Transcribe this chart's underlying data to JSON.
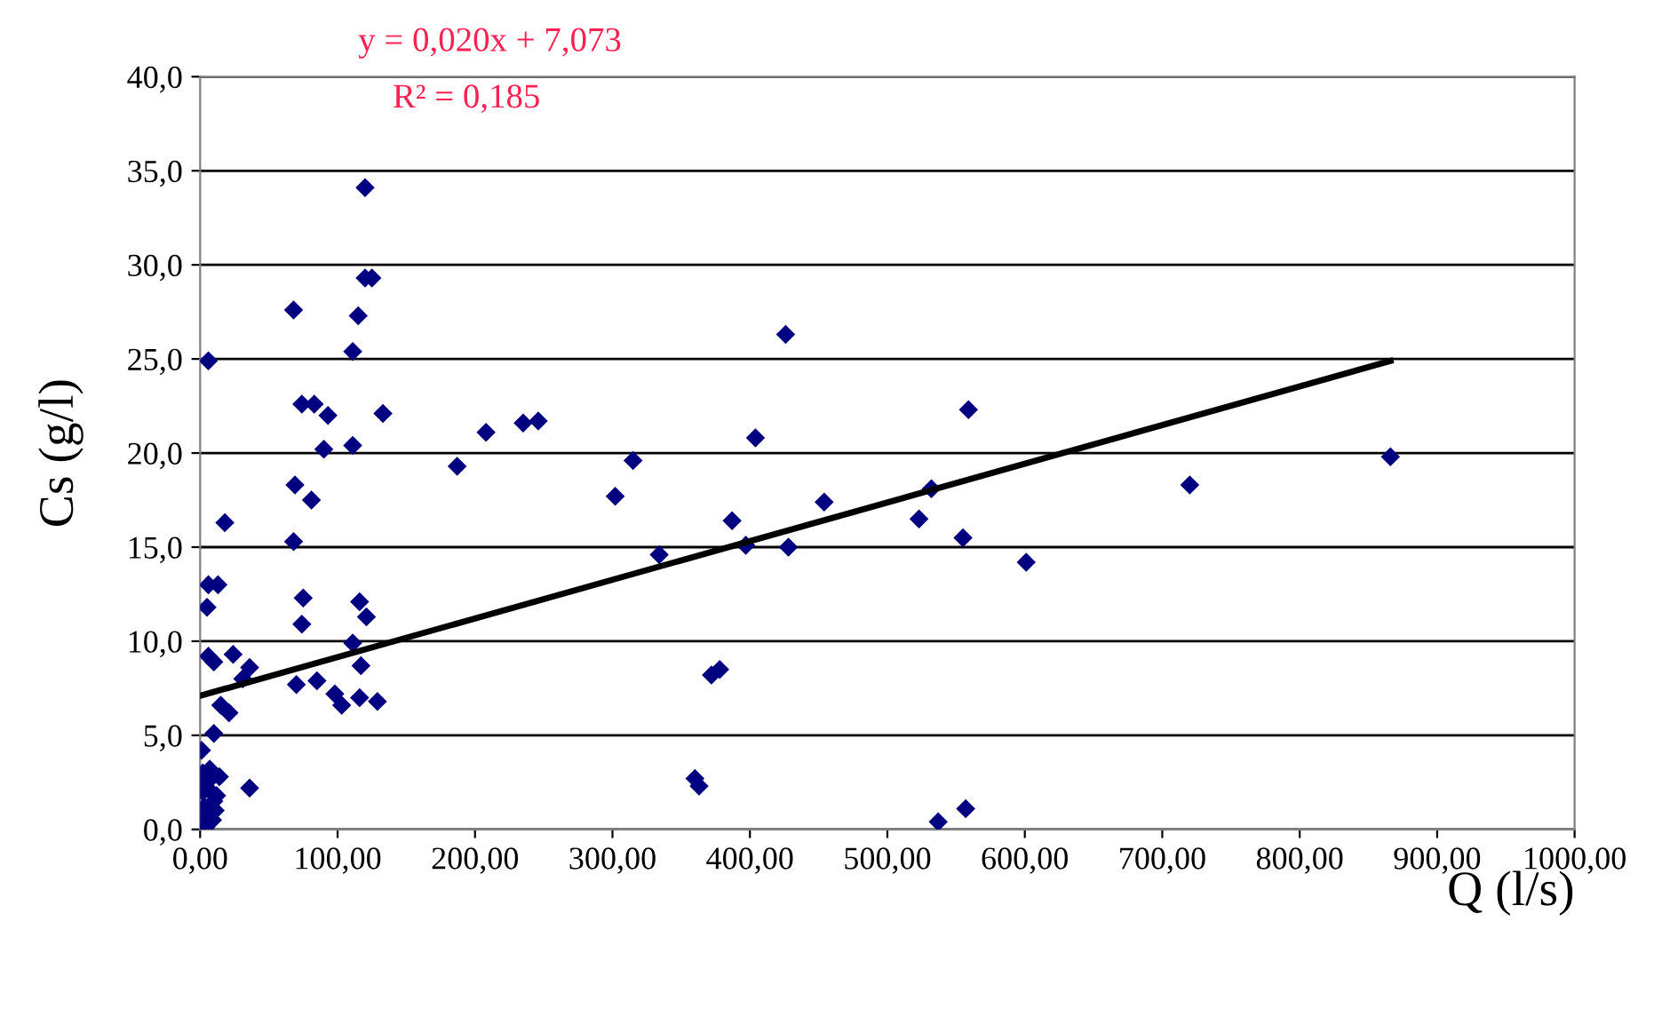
{
  "chart_data": {
    "type": "scatter",
    "xlabel": "Q (l/s)",
    "ylabel": "Cs (g/l)",
    "annotations": [
      "y = 0,020x + 7,073",
      "R² = 0,185"
    ],
    "xlim": [
      0,
      1000
    ],
    "ylim": [
      0,
      40
    ],
    "xticks": [
      {
        "value": 0,
        "label": "0,00"
      },
      {
        "value": 100,
        "label": "100,00"
      },
      {
        "value": 200,
        "label": "200,00"
      },
      {
        "value": 300,
        "label": "300,00"
      },
      {
        "value": 400,
        "label": "400,00"
      },
      {
        "value": 500,
        "label": "500,00"
      },
      {
        "value": 600,
        "label": "600,00"
      },
      {
        "value": 700,
        "label": "700,00"
      },
      {
        "value": 800,
        "label": "800,00"
      },
      {
        "value": 900,
        "label": "900,00"
      },
      {
        "value": 1000,
        "label": "1000,00"
      }
    ],
    "yticks": [
      {
        "value": 0,
        "label": "0,0"
      },
      {
        "value": 5,
        "label": "5,0"
      },
      {
        "value": 10,
        "label": "10,0"
      },
      {
        "value": 15,
        "label": "15,0"
      },
      {
        "value": 20,
        "label": "20,0"
      },
      {
        "value": 25,
        "label": "25,0"
      },
      {
        "value": 30,
        "label": "30,0"
      },
      {
        "value": 35,
        "label": "35,0"
      },
      {
        "value": 40,
        "label": "40,0"
      }
    ],
    "grid": "y",
    "marker": "diamond",
    "series": [
      {
        "color": "#000080",
        "x": [
          120,
          120,
          125,
          68,
          115,
          6,
          111,
          74,
          83,
          93,
          133,
          90,
          111,
          187,
          69,
          81,
          18,
          68,
          6,
          13,
          5,
          75,
          116,
          74,
          121,
          111,
          6,
          10,
          24,
          36,
          31,
          117,
          70,
          85,
          98,
          103,
          116,
          129,
          15,
          21,
          10,
          1,
          36,
          2,
          5,
          8,
          10,
          3,
          6,
          12,
          1,
          4,
          9,
          14,
          7,
          2,
          11,
          426,
          208,
          235,
          246,
          315,
          404,
          559,
          302,
          387,
          454,
          532,
          523,
          555,
          397,
          428,
          334,
          601,
          372,
          378,
          360,
          363,
          537,
          557,
          720,
          866
        ],
        "values": [
          34.1,
          29.3,
          29.3,
          27.6,
          27.3,
          24.9,
          25.4,
          22.6,
          22.6,
          22.0,
          22.1,
          20.2,
          20.4,
          19.3,
          18.3,
          17.5,
          16.3,
          15.3,
          13.0,
          13.0,
          11.8,
          12.3,
          12.1,
          10.9,
          11.3,
          9.9,
          9.2,
          8.9,
          9.3,
          8.6,
          8.0,
          8.7,
          7.7,
          7.9,
          7.2,
          6.6,
          7.0,
          6.8,
          6.6,
          6.2,
          5.1,
          4.2,
          2.2,
          3.0,
          2.5,
          2.0,
          1.5,
          1.2,
          0.8,
          1.8,
          0.3,
          0.1,
          0.5,
          2.8,
          3.2,
          2.0,
          1.0,
          26.3,
          21.1,
          21.6,
          21.7,
          19.6,
          20.8,
          22.3,
          17.7,
          16.4,
          17.4,
          18.1,
          16.5,
          15.5,
          15.1,
          15.0,
          14.6,
          14.2,
          8.2,
          8.5,
          2.7,
          2.3,
          0.4,
          1.1,
          18.3,
          19.8
        ]
      },
      {
        "type": "line",
        "color": "#000000",
        "marker": "none",
        "x": [
          0,
          866
        ],
        "values": [
          7.1,
          24.9
        ]
      }
    ]
  }
}
